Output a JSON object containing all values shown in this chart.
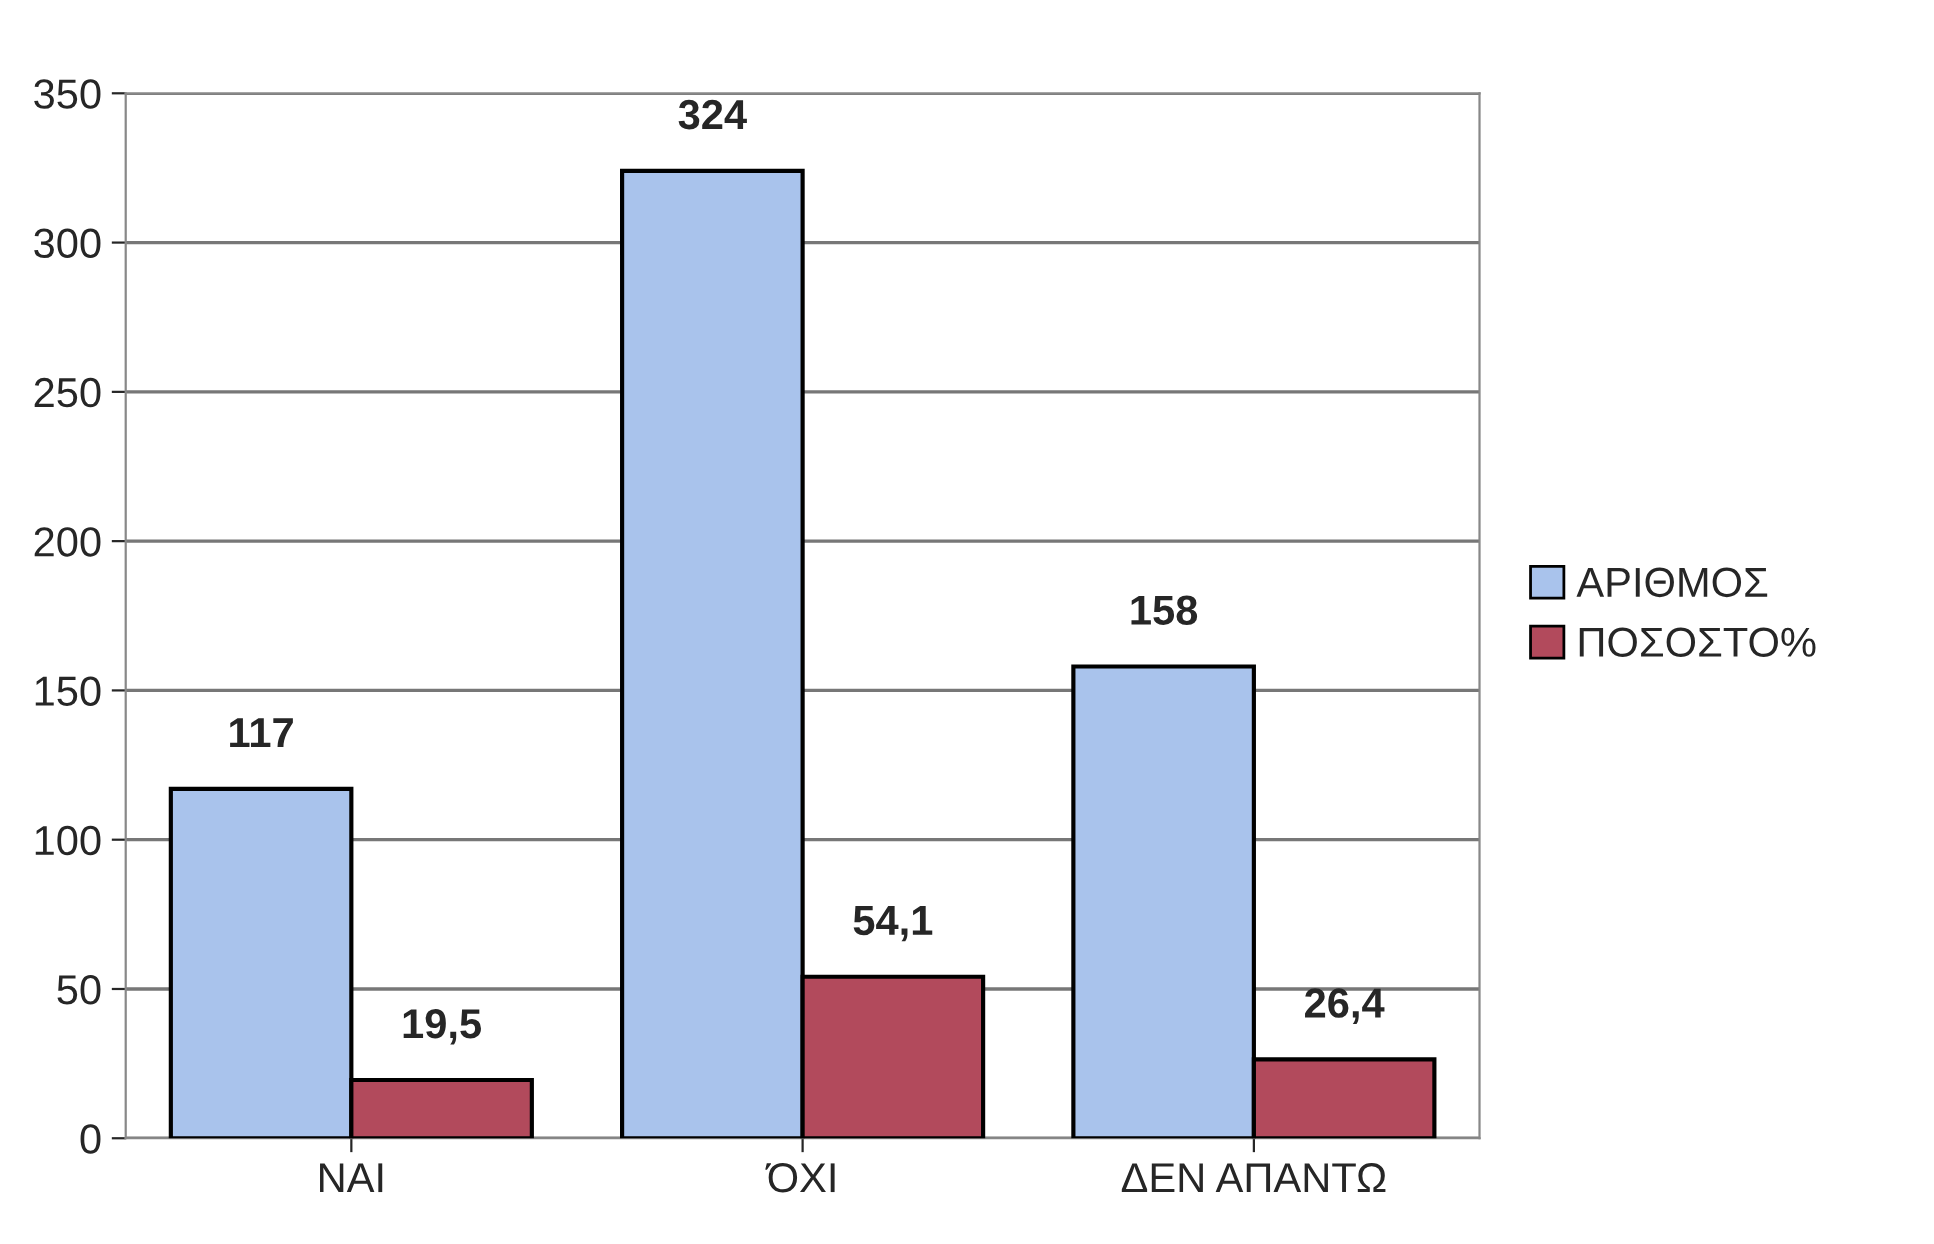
{
  "chart_data": {
    "type": "bar",
    "categories": [
      "ΝΑΙ",
      "ΌΧΙ",
      "ΔΕΝ ΑΠΑΝΤΩ"
    ],
    "series": [
      {
        "name": "ΑΡΙΘΜΟΣ",
        "color": "#a9c3ec",
        "values": [
          117,
          324,
          158
        ],
        "value_labels": [
          "117",
          "324",
          "158"
        ]
      },
      {
        "name": "ΠΟΣΟΣΤΟ%",
        "color": "#b24a5c",
        "values": [
          19.5,
          54.1,
          26.4
        ],
        "value_labels": [
          "19,5",
          "54,1",
          "26,4"
        ]
      }
    ],
    "ylim": [
      0,
      350
    ],
    "yticks": [
      0,
      50,
      100,
      150,
      200,
      250,
      300,
      350
    ],
    "grid": "y",
    "legend": "right"
  }
}
